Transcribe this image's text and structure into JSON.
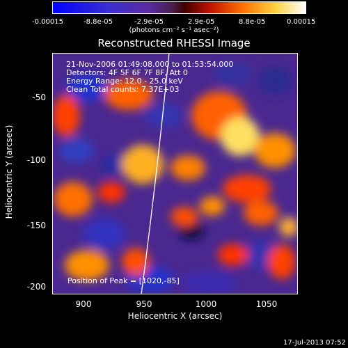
{
  "colorbar": {
    "ticks": [
      "-0.00015",
      "-8.8e-05",
      "-2.9e-05",
      "2.9e-05",
      "8.8e-05",
      "0.00015"
    ],
    "units": "(photons cm⁻² s⁻¹ asec⁻²)"
  },
  "title": "Reconstructed RHESSI Image",
  "info": {
    "time": "21-Nov-2006 01:49:08.000 to 01:53:54.000",
    "detectors": "Detectors: 4F 5F 6F 7F 8F, Att 0",
    "energy": "Energy Range: 12.0 - 25.0 keV",
    "clean": "Clean   Total counts: 7.37E+03"
  },
  "peak": "Position of Peak = [1020,-85]",
  "axes": {
    "xlabel": "Heliocentric X (arcsec)",
    "ylabel": "Heliocentric Y (arcsec)",
    "xticks": [
      "900",
      "950",
      "1000",
      "1050"
    ],
    "yticks": [
      "-50",
      "-100",
      "-150",
      "-200"
    ]
  },
  "timestamp": "17-Jul-2013 07:52"
}
